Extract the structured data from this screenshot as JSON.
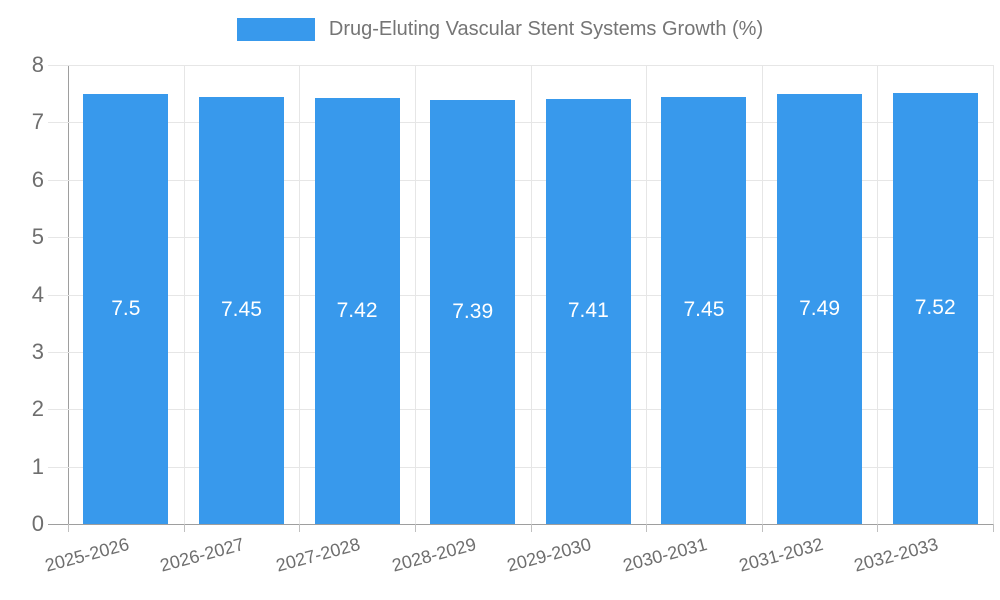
{
  "chart_data": {
    "type": "bar",
    "title": "Drug-Eluting Vascular Stent Systems Growth (%)",
    "categories": [
      "2025-2026",
      "2026-2027",
      "2027-2028",
      "2028-2029",
      "2029-2030",
      "2030-2031",
      "2031-2032",
      "2032-2033"
    ],
    "values": [
      7.5,
      7.45,
      7.42,
      7.39,
      7.41,
      7.45,
      7.49,
      7.52
    ],
    "value_labels": [
      "7.5",
      "7.45",
      "7.42",
      "7.39",
      "7.41",
      "7.45",
      "7.49",
      "7.52"
    ],
    "xlabel": "",
    "ylabel": "",
    "ylim": [
      0,
      8
    ],
    "ytick_step": 1,
    "ytick_labels": [
      "0",
      "1",
      "2",
      "3",
      "4",
      "5",
      "6",
      "7",
      "8"
    ],
    "grid": true,
    "legend_position": "top",
    "colors": {
      "bar": "#3899ec",
      "value_label": "#ffffff",
      "gridline": "#e6e6e6",
      "axis_line": "#9e9e9e",
      "tick_mark": "#c0c0c0",
      "axis_text": "#6e6e6e",
      "legend_text": "#757575"
    }
  }
}
